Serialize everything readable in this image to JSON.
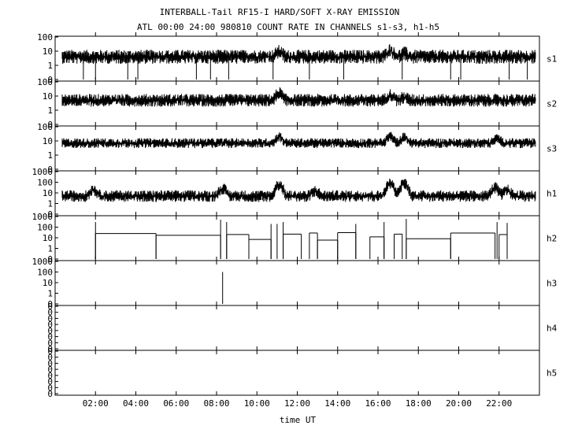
{
  "chart_data": {
    "type": "line",
    "title": "INTERBALL-Tail RF15-I HARD/SOFT X-RAY EMISSION",
    "subtitle": "ATL 00:00 24:00 980810  COUNT RATE IN CHANNELS s1-s3, h1-h5",
    "xlabel": "time UT",
    "xlim": [
      0,
      24
    ],
    "x_ticks": [
      "02:00",
      "04:00",
      "06:00",
      "08:00",
      "10:00",
      "12:00",
      "14:00",
      "16:00",
      "18:00",
      "20:00",
      "22:00"
    ],
    "x_tick_hours": [
      2,
      4,
      6,
      8,
      10,
      12,
      14,
      16,
      18,
      20,
      22
    ],
    "grid": false,
    "y_scale": "log",
    "series": [
      {
        "name": "s1",
        "y_tick_labels": [
          "100",
          "10",
          "1",
          "0"
        ],
        "baseline": 4,
        "noise": 0.5,
        "features": [
          {
            "x": 11.1,
            "y": 9
          },
          {
            "x": 16.6,
            "y": 11
          },
          {
            "x": 17.3,
            "y": 7
          }
        ],
        "dropouts": [
          1.4,
          2.0,
          3.6,
          4.1,
          7.0,
          7.7,
          8.6,
          10.8,
          12.6,
          14.3,
          17.2,
          19.6,
          20.1,
          22.5,
          23.4
        ]
      },
      {
        "name": "s2",
        "y_tick_labels": [
          "100",
          "10",
          "1",
          "0"
        ],
        "baseline": 5,
        "noise": 0.45,
        "features": [
          {
            "x": 11.1,
            "y": 16
          },
          {
            "x": 16.6,
            "y": 12
          },
          {
            "x": 17.3,
            "y": 8
          }
        ],
        "dropouts": []
      },
      {
        "name": "s3",
        "y_tick_labels": [
          "100",
          "10",
          "1",
          "0"
        ],
        "baseline": 7,
        "noise": 0.35,
        "features": [
          {
            "x": 11.1,
            "y": 20
          },
          {
            "x": 16.6,
            "y": 22
          },
          {
            "x": 17.3,
            "y": 18
          },
          {
            "x": 21.9,
            "y": 15
          }
        ],
        "dropouts": []
      },
      {
        "name": "h1",
        "y_tick_labels": [
          "1000",
          "100",
          "10",
          "1",
          "0"
        ],
        "baseline": 5,
        "noise": 0.55,
        "features": [
          {
            "x": 1.9,
            "y": 20
          },
          {
            "x": 8.3,
            "y": 25
          },
          {
            "x": 11.1,
            "y": 60
          },
          {
            "x": 12.9,
            "y": 15
          },
          {
            "x": 16.6,
            "y": 70
          },
          {
            "x": 17.3,
            "y": 80
          },
          {
            "x": 21.8,
            "y": 30
          },
          {
            "x": 22.4,
            "y": 18
          }
        ],
        "dropouts": []
      },
      {
        "name": "h2",
        "y_tick_labels": [
          "1000",
          "100",
          "10",
          "1",
          "0"
        ],
        "kind": "step",
        "segments": [
          {
            "x0": 2.0,
            "x1": 5.0,
            "y": 25
          },
          {
            "x0": 5.0,
            "x1": 8.2,
            "y": 17
          },
          {
            "x0": 8.5,
            "x1": 9.6,
            "y": 20
          },
          {
            "x0": 9.6,
            "x1": 10.7,
            "y": 7
          },
          {
            "x0": 11.3,
            "x1": 12.2,
            "y": 22
          },
          {
            "x0": 12.6,
            "x1": 13.0,
            "y": 28
          },
          {
            "x0": 13.0,
            "x1": 14.0,
            "y": 6
          },
          {
            "x0": 14.0,
            "x1": 14.9,
            "y": 30
          },
          {
            "x0": 15.6,
            "x1": 16.3,
            "y": 12
          },
          {
            "x0": 16.8,
            "x1": 17.2,
            "y": 22
          },
          {
            "x0": 17.4,
            "x1": 19.6,
            "y": 8
          },
          {
            "x0": 19.6,
            "x1": 21.8,
            "y": 28
          },
          {
            "x0": 22.0,
            "x1": 22.4,
            "y": 20
          }
        ],
        "spikes": [
          {
            "x": 2.0,
            "y": 300
          },
          {
            "x": 8.2,
            "y": 500
          },
          {
            "x": 8.5,
            "y": 300
          },
          {
            "x": 10.7,
            "y": 200
          },
          {
            "x": 11.0,
            "y": 200
          },
          {
            "x": 11.3,
            "y": 300
          },
          {
            "x": 14.9,
            "y": 200
          },
          {
            "x": 16.3,
            "y": 300
          },
          {
            "x": 17.4,
            "y": 600
          },
          {
            "x": 21.9,
            "y": 300
          },
          {
            "x": 22.4,
            "y": 250
          }
        ]
      },
      {
        "name": "h3",
        "y_tick_labels": [
          "1000",
          "100",
          "10",
          "1",
          "0"
        ],
        "kind": "spike",
        "spikes": [
          {
            "x": 8.3,
            "y": 100
          }
        ]
      },
      {
        "name": "h4",
        "y_tick_labels": [
          "0",
          "0",
          "0",
          "0",
          "0",
          "0",
          "0",
          "0"
        ],
        "kind": "empty"
      },
      {
        "name": "h5",
        "y_tick_labels": [
          "0",
          "0",
          "0",
          "0",
          "0",
          "0",
          "0",
          "0"
        ],
        "kind": "empty"
      }
    ]
  }
}
